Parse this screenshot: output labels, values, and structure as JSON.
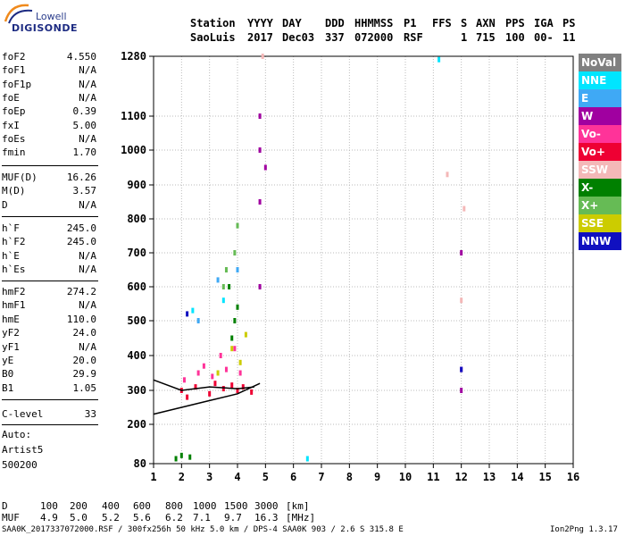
{
  "logo": {
    "top": "Lowell",
    "bottom": "DIGISONDE"
  },
  "header": {
    "labels": [
      "Station",
      "YYYY",
      "DAY",
      "DDD",
      "HHMMSS",
      "P1",
      "FFS",
      "S",
      "AXN",
      "PPS",
      "IGA",
      "PS"
    ],
    "values": [
      "SaoLuis",
      "2017",
      "Dec03",
      "337",
      "072000",
      "RSF",
      "1",
      "715",
      "100",
      "00-",
      "11"
    ]
  },
  "params": [
    {
      "name": "foF2",
      "value": "4.550"
    },
    {
      "name": "foF1",
      "value": "N/A"
    },
    {
      "name": "foF1p",
      "value": "N/A"
    },
    {
      "name": "foE",
      "value": "N/A"
    },
    {
      "name": "foEp",
      "value": "0.39"
    },
    {
      "name": "fxI",
      "value": "5.00"
    },
    {
      "name": "foEs",
      "value": "N/A"
    },
    {
      "name": "fmin",
      "value": "1.70"
    },
    {
      "name": "MUF(D)",
      "value": "16.26"
    },
    {
      "name": "M(D)",
      "value": "3.57"
    },
    {
      "name": "D",
      "value": "N/A"
    },
    {
      "name": "h`F",
      "value": "245.0"
    },
    {
      "name": "h`F2",
      "value": "245.0"
    },
    {
      "name": "h`E",
      "value": "N/A"
    },
    {
      "name": "h`Es",
      "value": "N/A"
    },
    {
      "name": "hmF2",
      "value": "274.2"
    },
    {
      "name": "hmF1",
      "value": "N/A"
    },
    {
      "name": "hmE",
      "value": "110.0"
    },
    {
      "name": "yF2",
      "value": "24.0"
    },
    {
      "name": "yF1",
      "value": "N/A"
    },
    {
      "name": "yE",
      "value": "20.0"
    },
    {
      "name": "B0",
      "value": "29.9"
    },
    {
      "name": "B1",
      "value": "1.05"
    },
    {
      "name": "C-level",
      "value": "33"
    }
  ],
  "autoscale": {
    "line1": "Auto:",
    "line2": "Artist5",
    "line3": "500200"
  },
  "legend": [
    {
      "label": "NoVal",
      "bg": "#808080",
      "fg": "#ffffff"
    },
    {
      "label": "NNE",
      "bg": "#00e5ff",
      "fg": "#ffffff"
    },
    {
      "label": "E",
      "bg": "#3fa9f5",
      "fg": "#ffffff"
    },
    {
      "label": "W",
      "bg": "#a000a0",
      "fg": "#ffffff"
    },
    {
      "label": "Vo-",
      "bg": "#ff3399",
      "fg": "#ffffff"
    },
    {
      "label": "Vo+",
      "bg": "#ee0033",
      "fg": "#ffffff"
    },
    {
      "label": "SSW",
      "bg": "#f4b8b8",
      "fg": "#ffffff"
    },
    {
      "label": "X-",
      "bg": "#008000",
      "fg": "#ffffff"
    },
    {
      "label": "X+",
      "bg": "#66bb55",
      "fg": "#ffffff"
    },
    {
      "label": "SSE",
      "bg": "#cccc00",
      "fg": "#ffffff"
    },
    {
      "label": "NNW",
      "bg": "#1010c0",
      "fg": "#ffffff"
    }
  ],
  "footer": {
    "d_label": "D",
    "d_values": [
      "100",
      "200",
      "400",
      "600",
      "800",
      "1000",
      "1500",
      "3000"
    ],
    "d_unit": "[km]",
    "muf_label": "MUF",
    "muf_values": [
      "4.9",
      "5.0",
      "5.2",
      "5.6",
      "6.2",
      "7.1",
      "9.7",
      "16.3"
    ],
    "muf_unit": "[MHz]",
    "file_line": "SAA0K_2017337072000.RSF / 300fx256h 50 kHz 5.0 km / DPS-4 SAA0K 903 / 2.6 S 315.8 E",
    "version": "Ion2Png 1.3.17"
  },
  "chart_data": {
    "type": "scatter",
    "title": "",
    "xlabel": "",
    "ylabel": "",
    "xlim": [
      1,
      16
    ],
    "ylim": [
      80,
      1280
    ],
    "x_ticks": [
      "1",
      "2",
      "3",
      "4",
      "5",
      "6",
      "7",
      "8",
      "9",
      "10",
      "11",
      "12",
      "13",
      "14",
      "15",
      "16"
    ],
    "y_ticks": [
      "80",
      "200",
      "300",
      "400",
      "500",
      "600",
      "700",
      "800",
      "900",
      "1000",
      "1100",
      "1280"
    ],
    "y_scale": "nonlinear (as printed)",
    "grid": true,
    "series": [
      {
        "name": "Vo+",
        "color": "#ee0033",
        "points": [
          [
            2.0,
            300
          ],
          [
            2.5,
            310
          ],
          [
            3.0,
            290
          ],
          [
            3.5,
            305
          ],
          [
            4.0,
            300
          ],
          [
            4.5,
            295
          ],
          [
            3.2,
            320
          ],
          [
            3.8,
            315
          ],
          [
            2.2,
            280
          ],
          [
            4.2,
            310
          ]
        ]
      },
      {
        "name": "Vo-",
        "color": "#ff3399",
        "points": [
          [
            2.1,
            330
          ],
          [
            2.6,
            350
          ],
          [
            3.1,
            340
          ],
          [
            3.6,
            360
          ],
          [
            4.1,
            350
          ],
          [
            3.4,
            400
          ],
          [
            3.9,
            420
          ],
          [
            2.8,
            370
          ]
        ]
      },
      {
        "name": "W",
        "color": "#a000a0",
        "points": [
          [
            4.8,
            1100
          ],
          [
            4.8,
            1000
          ],
          [
            5.0,
            950
          ],
          [
            12.0,
            700
          ],
          [
            12.0,
            360
          ],
          [
            12.0,
            300
          ],
          [
            4.8,
            600
          ],
          [
            4.8,
            850
          ]
        ]
      },
      {
        "name": "X-",
        "color": "#008000",
        "points": [
          [
            3.8,
            450
          ],
          [
            3.9,
            500
          ],
          [
            4.0,
            540
          ],
          [
            3.7,
            600
          ],
          [
            2.0,
            105
          ],
          [
            2.3,
            100
          ],
          [
            1.8,
            95
          ]
        ]
      },
      {
        "name": "X+",
        "color": "#66bb55",
        "points": [
          [
            3.5,
            600
          ],
          [
            3.9,
            700
          ],
          [
            4.0,
            780
          ],
          [
            3.6,
            650
          ]
        ]
      },
      {
        "name": "SSE",
        "color": "#cccc00",
        "points": [
          [
            3.8,
            420
          ],
          [
            4.1,
            380
          ],
          [
            4.3,
            460
          ],
          [
            3.3,
            350
          ]
        ]
      },
      {
        "name": "NNE",
        "color": "#00e5ff",
        "points": [
          [
            3.5,
            560
          ],
          [
            2.4,
            530
          ],
          [
            11.2,
            1270
          ],
          [
            6.5,
            95
          ]
        ]
      },
      {
        "name": "E",
        "color": "#3fa9f5",
        "points": [
          [
            3.3,
            620
          ],
          [
            2.6,
            500
          ],
          [
            4.0,
            650
          ]
        ]
      },
      {
        "name": "NNW",
        "color": "#1010c0",
        "points": [
          [
            12.0,
            360
          ],
          [
            2.2,
            520
          ]
        ]
      },
      {
        "name": "SSW",
        "color": "#f4b8b8",
        "points": [
          [
            12.1,
            830
          ],
          [
            12.0,
            560
          ],
          [
            11.5,
            930
          ],
          [
            4.9,
            1280
          ]
        ]
      }
    ],
    "traces": [
      {
        "color": "#000000",
        "points": [
          [
            1.0,
            230
          ],
          [
            2.0,
            250
          ],
          [
            3.0,
            270
          ],
          [
            4.0,
            290
          ],
          [
            4.8,
            320
          ]
        ]
      },
      {
        "color": "#000000",
        "points": [
          [
            1.0,
            330
          ],
          [
            2.0,
            300
          ],
          [
            3.0,
            310
          ],
          [
            4.0,
            305
          ],
          [
            4.6,
            310
          ]
        ]
      }
    ]
  }
}
